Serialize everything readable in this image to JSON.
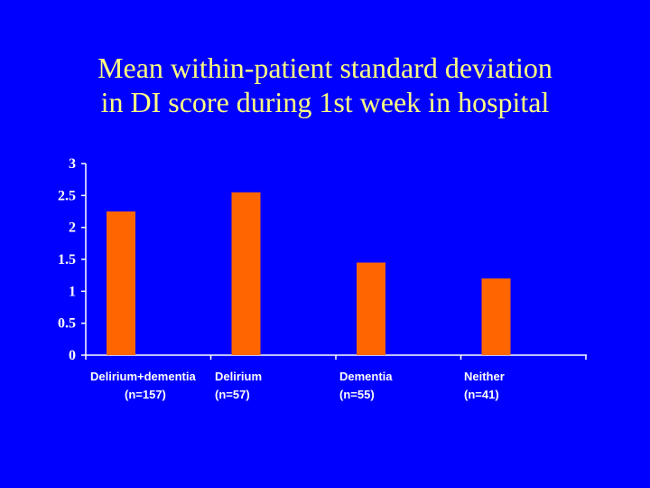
{
  "colors": {
    "background": "#0000ff",
    "title": "#ffff80",
    "bar": "#ff6600",
    "axis": "#ffffff",
    "text": "#ffffff"
  },
  "chart_data": {
    "type": "bar",
    "title": "Mean within-patient standard deviation in DI score during 1st week in hospital",
    "title_lines": [
      "Mean within-patient standard deviation",
      "in DI score during 1st week in hospital"
    ],
    "categories": [
      "Delirium+dementia",
      "Delirium",
      "Dementia",
      "Neither"
    ],
    "category_n": [
      "(n=157)",
      "(n=57)",
      "(n=55)",
      "(n=41)"
    ],
    "values": [
      2.25,
      2.55,
      1.45,
      1.2
    ],
    "ylim": [
      0,
      3
    ],
    "yticks": [
      0,
      0.5,
      1,
      1.5,
      2,
      2.5,
      3
    ],
    "ytick_labels": [
      "0",
      "0.5",
      "1",
      "1.5",
      "2",
      "2.5",
      "3"
    ],
    "xlabel": "",
    "ylabel": "",
    "grid": false,
    "legend": "none"
  }
}
